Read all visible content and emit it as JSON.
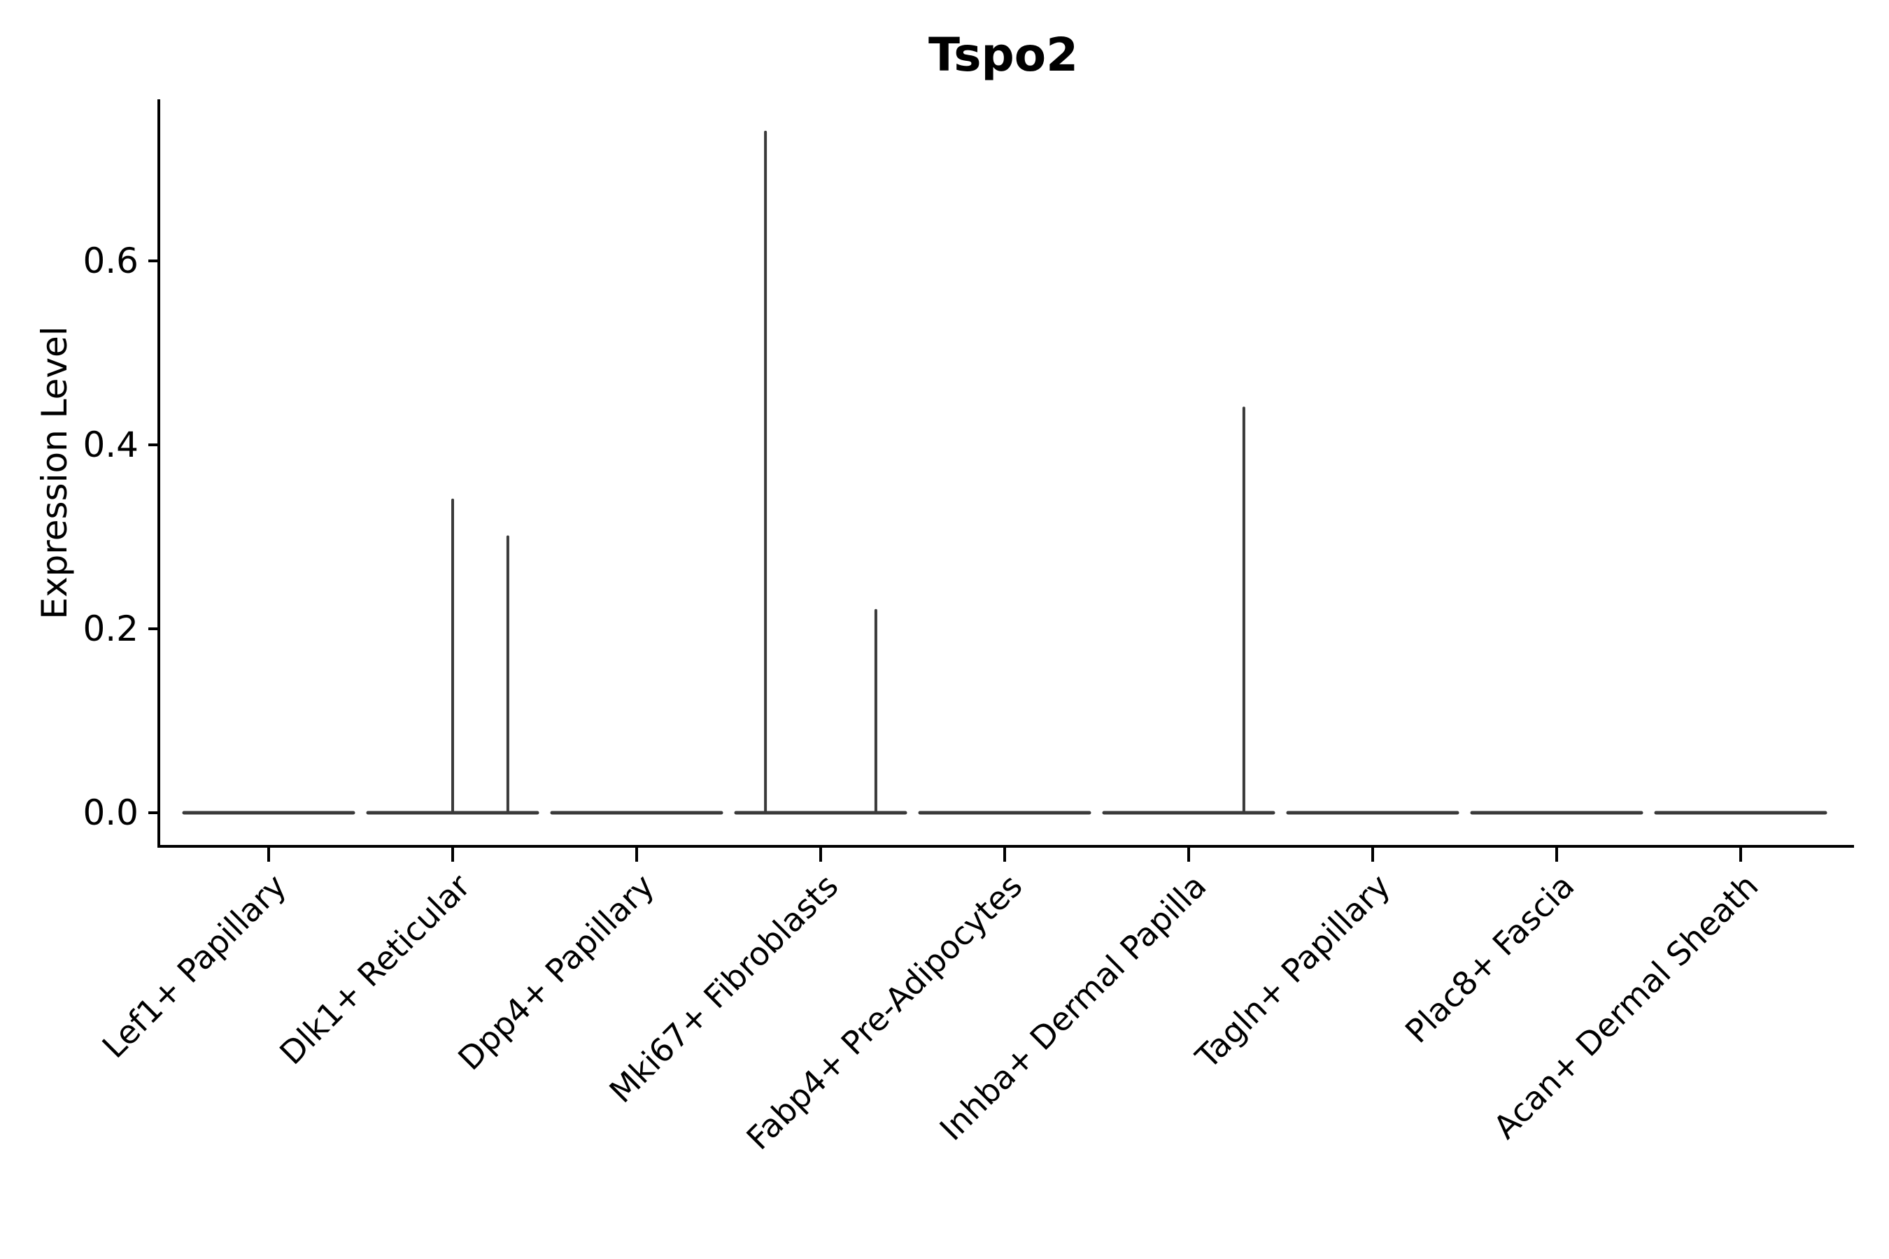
{
  "chart_data": {
    "type": "violin",
    "title": "Tspo2",
    "ylabel": "Expression Level",
    "xlabel": "",
    "legend": "none",
    "grid": false,
    "yticks": [
      "0.0",
      "0.2",
      "0.4",
      "0.6"
    ],
    "ylim": [
      -0.035,
      0.775
    ],
    "categories": [
      "Lef1+ Papillary",
      "Dlk1+ Reticular",
      "Dpp4+ Papillary",
      "Mki67+ Fibroblasts",
      "Fabp4+ Pre-Adipocytes",
      "Inhba+ Dermal Papilla",
      "Tagln+ Papillary",
      "Plac8+ Fascia",
      "Acan+ Dermal Sheath"
    ],
    "violins": [
      {
        "category": "Lef1+ Papillary",
        "body": "flat-at-zero",
        "spikes": []
      },
      {
        "category": "Dlk1+ Reticular",
        "body": "flat-at-zero",
        "spikes": [
          {
            "offset_frac": 0.0,
            "value": 0.34
          },
          {
            "offset_frac": 0.3,
            "value": 0.3
          }
        ]
      },
      {
        "category": "Dpp4+ Papillary",
        "body": "flat-at-zero",
        "spikes": []
      },
      {
        "category": "Mki67+ Fibroblasts",
        "body": "flat-at-zero",
        "spikes": [
          {
            "offset_frac": -0.3,
            "value": 0.74
          },
          {
            "offset_frac": 0.3,
            "value": 0.22
          }
        ]
      },
      {
        "category": "Fabp4+ Pre-Adipocytes",
        "body": "flat-at-zero",
        "spikes": []
      },
      {
        "category": "Inhba+ Dermal Papilla",
        "body": "flat-at-zero",
        "spikes": [
          {
            "offset_frac": 0.3,
            "value": 0.44
          }
        ]
      },
      {
        "category": "Tagln+ Papillary",
        "body": "flat-at-zero",
        "spikes": []
      },
      {
        "category": "Plac8+ Fascia",
        "body": "flat-at-zero",
        "spikes": []
      },
      {
        "category": "Acan+ Dermal Sheath",
        "body": "flat-at-zero",
        "spikes": []
      }
    ],
    "colors": {
      "violin_stroke": "#3a3a3a",
      "axis": "#000000",
      "text": "#000000",
      "background": "#ffffff"
    }
  }
}
